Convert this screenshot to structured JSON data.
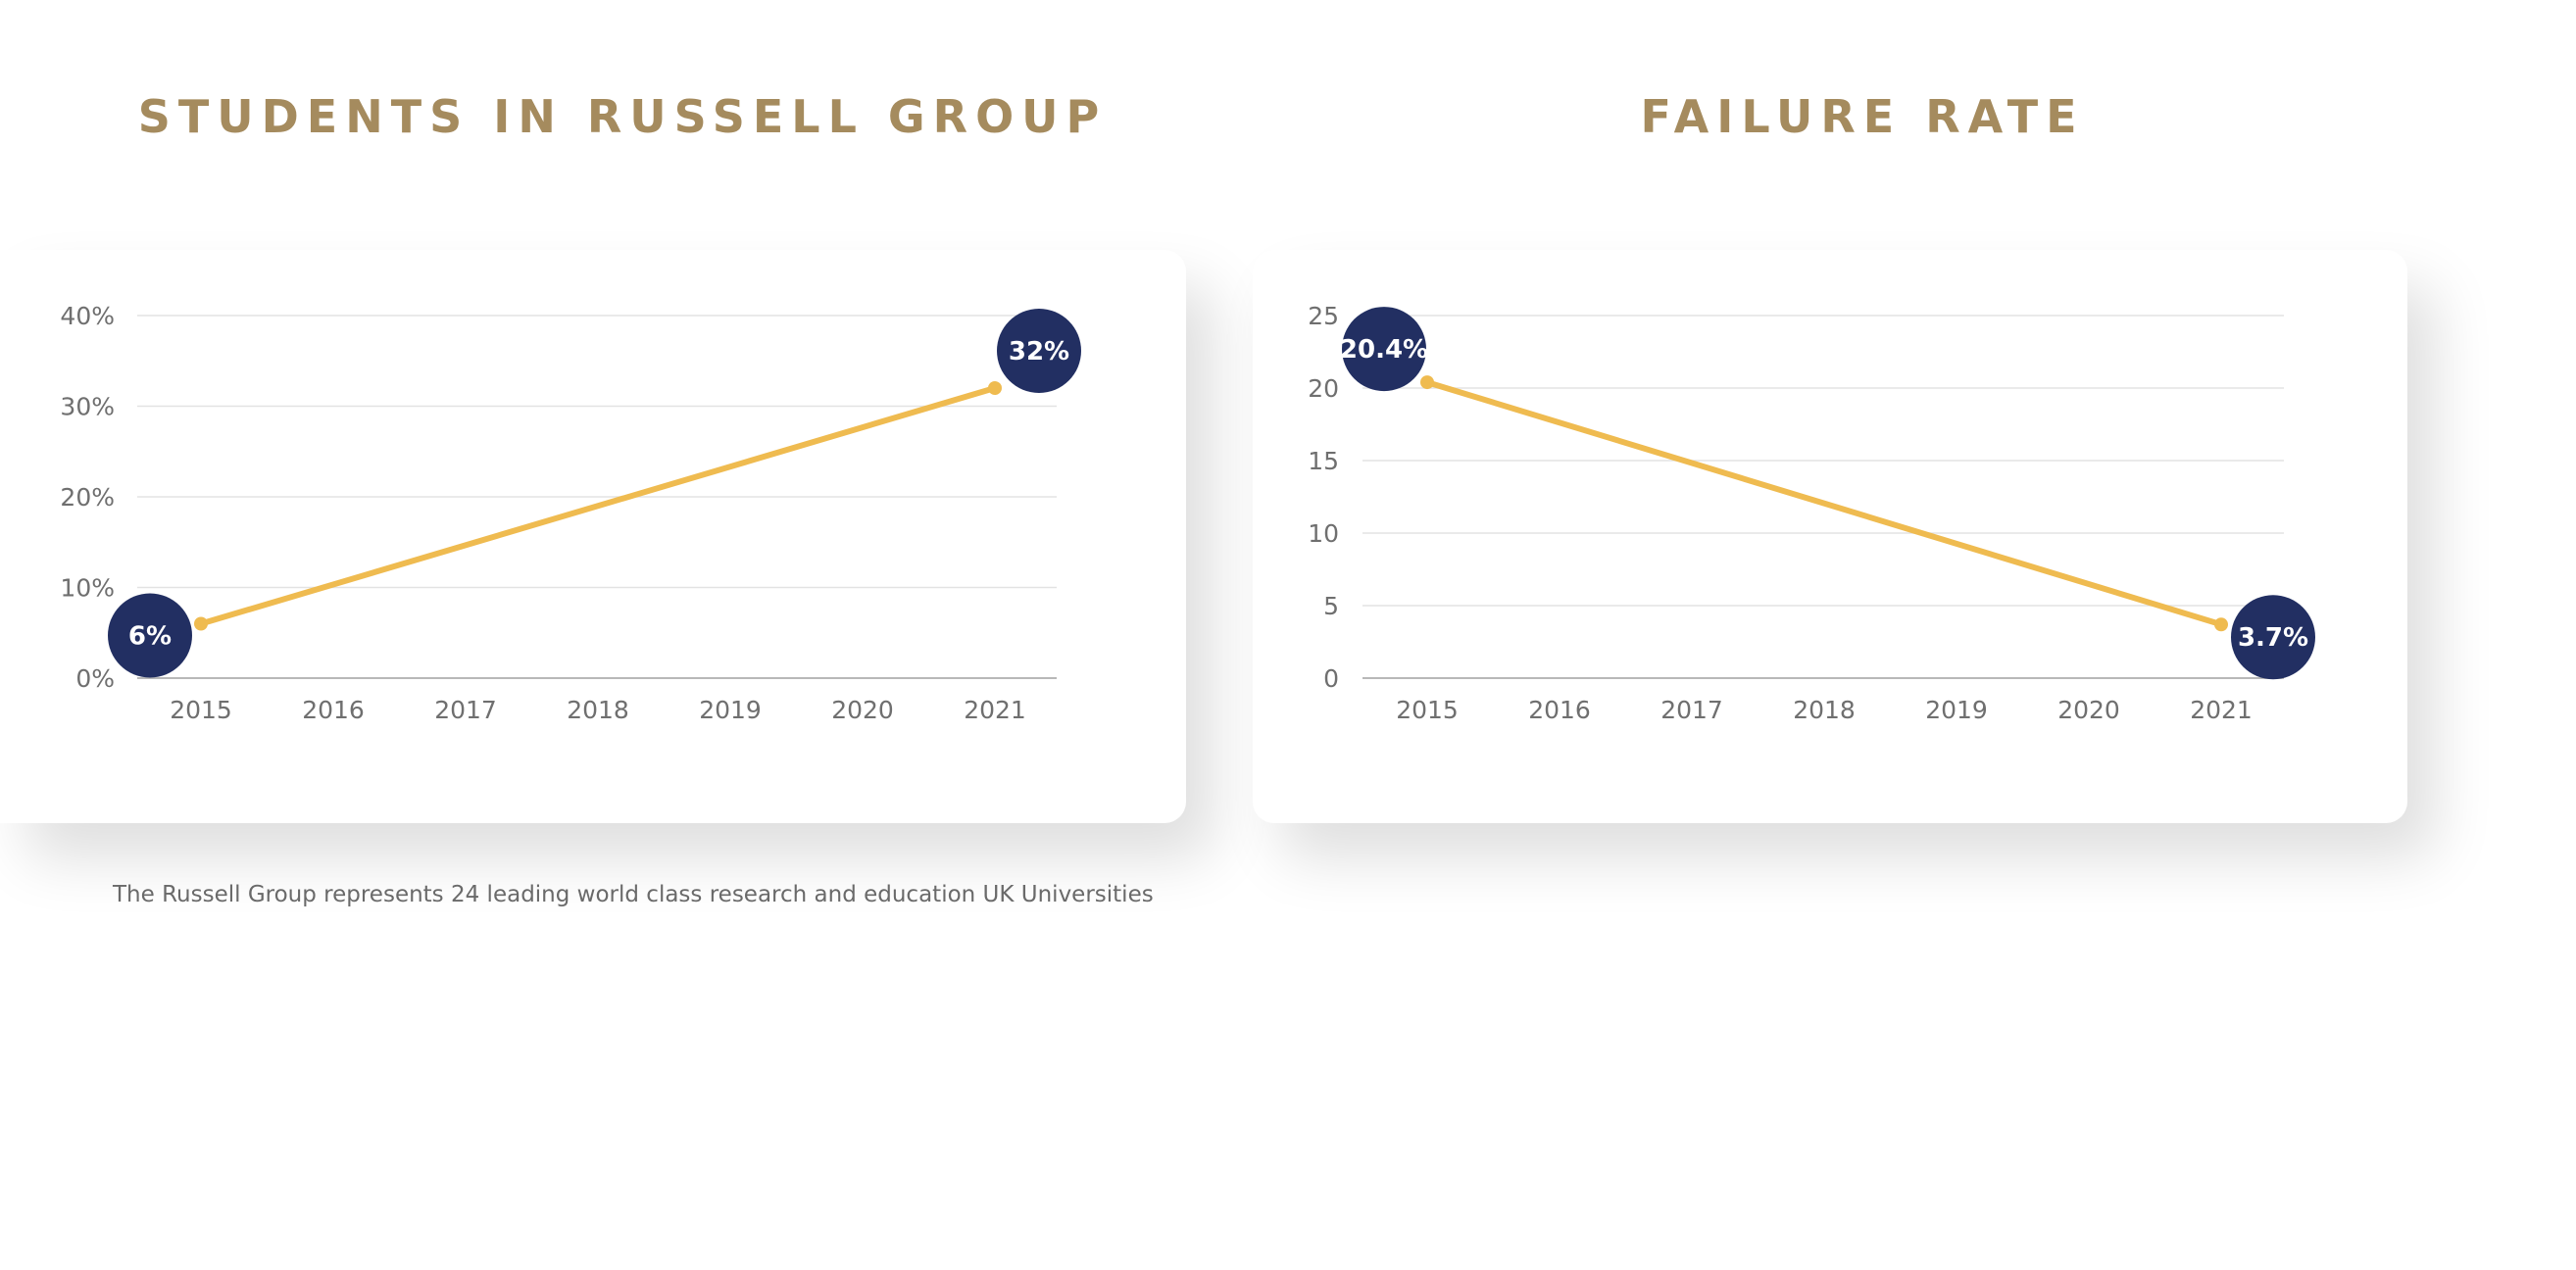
{
  "chart_data": [
    {
      "type": "line",
      "title": "STUDENTS IN RUSSELL GROUP",
      "x": [
        "2015",
        "2016",
        "2017",
        "2018",
        "2019",
        "2020",
        "2021"
      ],
      "yticks": [
        "0%",
        "10%",
        "20%",
        "30%",
        "40%"
      ],
      "ylim": [
        0,
        40
      ],
      "series": [
        {
          "points": [
            {
              "x": "2015",
              "y": 6,
              "label": "6%"
            },
            {
              "x": "2021",
              "y": 32,
              "label": "32%"
            }
          ]
        }
      ],
      "grid": true,
      "line_color": "#efbb50",
      "badge_color": "#222f62"
    },
    {
      "type": "line",
      "title": "FAILURE RATE",
      "x": [
        "2015",
        "2016",
        "2017",
        "2018",
        "2019",
        "2020",
        "2021"
      ],
      "yticks": [
        "0",
        "5",
        "10",
        "15",
        "20",
        "25"
      ],
      "ylim": [
        0,
        25
      ],
      "series": [
        {
          "points": [
            {
              "x": "2015",
              "y": 20.4,
              "label": "20.4%"
            },
            {
              "x": "2021",
              "y": 3.7,
              "label": "3.7%"
            }
          ]
        }
      ],
      "grid": true,
      "line_color": "#efbb50",
      "badge_color": "#222f62"
    }
  ],
  "footnote": "The Russell Group represents 24 leading world class research and education UK Universities"
}
